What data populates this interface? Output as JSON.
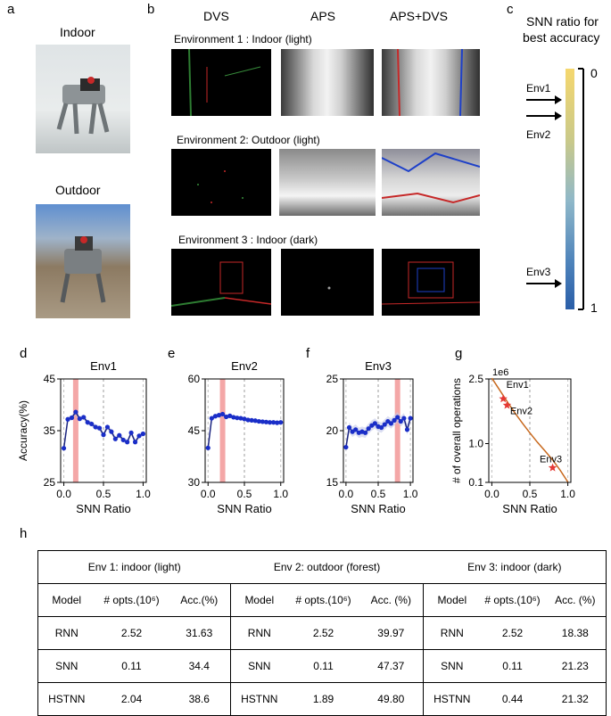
{
  "panels": {
    "a": "a",
    "b": "b",
    "c": "c",
    "d": "d",
    "e": "e",
    "f": "f",
    "g": "g",
    "h": "h"
  },
  "panel_a": {
    "indoor_label": "Indoor",
    "outdoor_label": "Outdoor"
  },
  "panel_b": {
    "col_headers": [
      "DVS",
      "APS",
      "APS+DVS"
    ],
    "env_titles": [
      "Environment 1 : Indoor (light)",
      "Environment 2: Outdoor (light)",
      "Environment 3 : Indoor (dark)"
    ]
  },
  "panel_c": {
    "title_line1": "SNN ratio for",
    "title_line2": "best accuracy",
    "env_labels": [
      "Env1",
      "Env2",
      "Env3"
    ],
    "scale_top": "0",
    "scale_bottom": "1",
    "colorbar": {
      "top": "#f5d76e",
      "middle": "#8fb8c9",
      "bottom": "#2a5ea8"
    }
  },
  "chart_data": [
    {
      "type": "line",
      "panel": "d",
      "title": "Env1",
      "xlabel": "SNN Ratio",
      "ylabel": "Accuracy(%)",
      "xlim": [
        0,
        1
      ],
      "ylim": [
        25,
        45
      ],
      "yticks": [
        "25",
        "35",
        "45"
      ],
      "xticks": [
        "0.0",
        "0.5",
        "1.0"
      ],
      "highlight_x": 0.15,
      "x": [
        0.0,
        0.05,
        0.1,
        0.15,
        0.2,
        0.25,
        0.3,
        0.35,
        0.4,
        0.45,
        0.5,
        0.55,
        0.6,
        0.65,
        0.7,
        0.75,
        0.8,
        0.85,
        0.9,
        0.95,
        1.0
      ],
      "y": [
        31.6,
        37.2,
        37.5,
        38.6,
        37.3,
        37.6,
        36.6,
        36.3,
        35.7,
        35.5,
        34.2,
        35.7,
        34.8,
        33.4,
        34.1,
        33.2,
        32.8,
        34.6,
        32.8,
        34.0,
        34.4
      ]
    },
    {
      "type": "line",
      "panel": "e",
      "title": "Env2",
      "xlabel": "SNN Ratio",
      "ylabel": "",
      "xlim": [
        0,
        1
      ],
      "ylim": [
        30,
        60
      ],
      "yticks": [
        "30",
        "45",
        "60"
      ],
      "xticks": [
        "0.0",
        "0.5",
        "1.0"
      ],
      "highlight_x": 0.2,
      "x": [
        0.0,
        0.05,
        0.1,
        0.15,
        0.2,
        0.25,
        0.3,
        0.35,
        0.4,
        0.45,
        0.5,
        0.55,
        0.6,
        0.65,
        0.7,
        0.75,
        0.8,
        0.85,
        0.9,
        0.95,
        1.0
      ],
      "y": [
        40.0,
        48.6,
        49.2,
        49.5,
        49.8,
        49.0,
        49.3,
        48.9,
        48.7,
        48.6,
        48.4,
        48.1,
        48.0,
        47.9,
        47.7,
        47.6,
        47.5,
        47.4,
        47.4,
        47.3,
        47.4
      ]
    },
    {
      "type": "line",
      "panel": "f",
      "title": "Env3",
      "xlabel": "SNN Ratio",
      "ylabel": "",
      "xlim": [
        0,
        1
      ],
      "ylim": [
        15,
        25
      ],
      "yticks": [
        "15",
        "20",
        "25"
      ],
      "xticks": [
        "0.0",
        "0.5",
        "1.0"
      ],
      "highlight_x": 0.8,
      "x": [
        0.0,
        0.05,
        0.1,
        0.15,
        0.2,
        0.25,
        0.3,
        0.35,
        0.4,
        0.45,
        0.5,
        0.55,
        0.6,
        0.65,
        0.7,
        0.75,
        0.8,
        0.85,
        0.9,
        0.95,
        1.0
      ],
      "y": [
        18.4,
        20.3,
        19.9,
        20.1,
        19.8,
        19.9,
        19.8,
        20.2,
        20.5,
        20.7,
        20.4,
        20.3,
        20.6,
        20.9,
        20.7,
        21.0,
        21.3,
        20.9,
        21.2,
        20.1,
        21.2
      ]
    },
    {
      "type": "line",
      "panel": "g",
      "title": "",
      "xlabel": "SNN Ratio",
      "ylabel": "# of overall operations",
      "scale_label": "1e6",
      "xlim": [
        0,
        1
      ],
      "ylim": [
        0.1,
        2.5
      ],
      "yticks": [
        "0.1",
        "1.0",
        "2.5"
      ],
      "xticks": [
        "0.0",
        "0.5",
        "1.0"
      ],
      "curve": {
        "x": [
          0.0,
          0.1,
          0.2,
          0.3,
          0.4,
          0.5,
          0.6,
          0.7,
          0.8,
          0.9,
          1.0
        ],
        "y": [
          2.52,
          2.25,
          1.98,
          1.72,
          1.48,
          1.25,
          1.03,
          0.83,
          0.62,
          0.38,
          0.11
        ]
      },
      "points": [
        {
          "name": "Env1",
          "x": 0.15,
          "y": 2.04
        },
        {
          "name": "Env2",
          "x": 0.2,
          "y": 1.89
        },
        {
          "name": "Env3",
          "x": 0.8,
          "y": 0.44
        }
      ],
      "marker_color": "#e53935",
      "curve_color": "#c8691e"
    }
  ],
  "table": {
    "groups": [
      "Env 1: indoor (light)",
      "Env 2: outdoor (forest)",
      "Env 3: indoor (dark)"
    ],
    "col_model": "Model",
    "col_ops": "# opts.(10⁶)",
    "col_ops_env1": "# opts.(10⁶)",
    "col_acc_env1": "Acc.(%)",
    "col_acc": "Acc. (%)",
    "rows": [
      {
        "model": "RNN",
        "e1_ops": "2.52",
        "e1_acc": "31.63",
        "e2_ops": "2.52",
        "e2_acc": "39.97",
        "e3_ops": "2.52",
        "e3_acc": "18.38"
      },
      {
        "model": "SNN",
        "e1_ops": "0.11",
        "e1_acc": "34.4",
        "e2_ops": "0.11",
        "e2_acc": "47.37",
        "e3_ops": "0.11",
        "e3_acc": "21.23"
      },
      {
        "model": "HSTNN",
        "e1_ops": "2.04",
        "e1_acc": "38.6",
        "e2_ops": "1.89",
        "e2_acc": "49.80",
        "e3_ops": "0.44",
        "e3_acc": "21.32"
      }
    ]
  }
}
